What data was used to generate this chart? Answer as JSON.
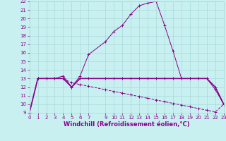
{
  "xlabel": "Windchill (Refroidissement éolien,°C)",
  "bg_color": "#c8f0f0",
  "grid_color": "#a8d8d8",
  "line_color": "#880088",
  "line1_x": [
    0,
    1,
    2,
    3,
    4,
    5,
    6,
    7,
    9,
    10,
    11,
    12,
    13,
    14,
    15,
    16,
    17,
    18,
    19,
    20,
    21,
    22,
    23
  ],
  "line1_y": [
    9,
    13,
    13,
    13,
    13.3,
    12,
    13.3,
    15.8,
    17.3,
    18.5,
    19.2,
    20.5,
    21.5,
    21.8,
    22.0,
    19.2,
    16.2,
    13,
    13,
    13,
    13,
    11.7,
    10
  ],
  "line2_x": [
    0,
    1,
    2,
    3,
    4,
    5,
    6,
    7,
    9,
    10,
    11,
    12,
    13,
    14,
    15,
    16,
    17,
    18,
    19,
    20,
    21,
    22,
    23
  ],
  "line2_y": [
    9,
    13,
    13,
    13,
    13,
    12,
    13,
    13,
    13,
    13,
    13,
    13,
    13,
    13,
    13,
    13,
    13,
    13,
    13,
    13,
    13,
    12,
    10
  ],
  "line3_x": [
    1,
    2,
    3,
    4,
    5,
    6,
    7,
    9,
    10,
    11,
    12,
    13,
    14,
    15,
    16,
    17,
    18,
    19,
    20,
    21,
    22,
    23
  ],
  "line3_y": [
    13,
    13,
    13,
    13,
    12.5,
    12.3,
    12.1,
    11.7,
    11.5,
    11.3,
    11.1,
    10.9,
    10.7,
    10.5,
    10.3,
    10.1,
    9.9,
    9.7,
    9.5,
    9.3,
    9.1,
    10
  ],
  "ylim": [
    9,
    22
  ],
  "xlim": [
    0,
    23
  ],
  "yticks": [
    9,
    10,
    11,
    12,
    13,
    14,
    15,
    16,
    17,
    18,
    19,
    20,
    21,
    22
  ],
  "xticks": [
    0,
    1,
    2,
    3,
    4,
    5,
    6,
    7,
    9,
    10,
    11,
    12,
    13,
    14,
    15,
    16,
    17,
    18,
    19,
    20,
    21,
    22,
    23
  ],
  "tick_fontsize": 5.0,
  "xlabel_fontsize": 6.0,
  "linewidth": 0.7,
  "markersize": 2.5
}
